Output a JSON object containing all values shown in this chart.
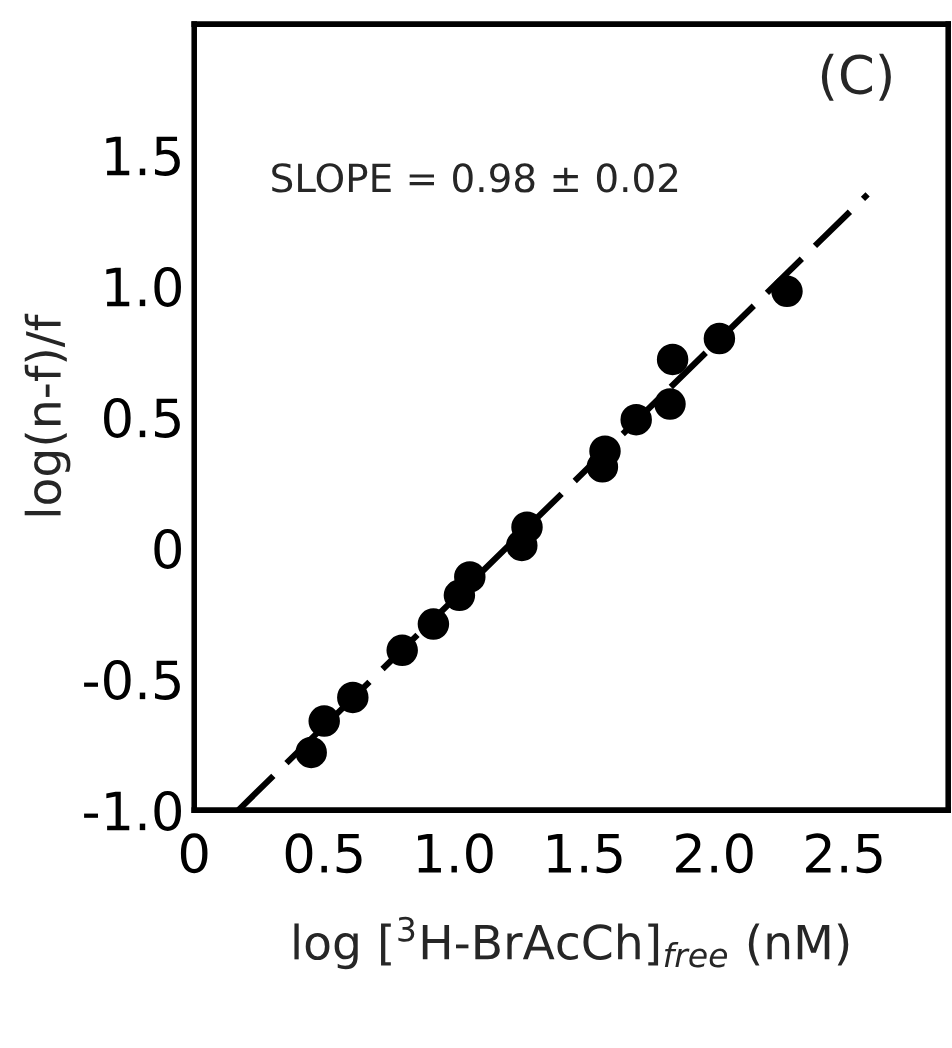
{
  "chart_data": {
    "type": "scatter",
    "xlabel": "log [$^{3}$H-BrAcCh]$_{free}$ (nM)",
    "ylabel": "log(n-f)/f",
    "annotations": [
      "(C)",
      "SLOPE = 0.98 ± 0.02"
    ],
    "x": [
      0.45,
      0.5,
      0.61,
      0.8,
      0.92,
      1.02,
      1.06,
      1.26,
      1.28,
      1.57,
      1.58,
      1.7,
      1.83,
      1.84,
      2.02,
      2.28
    ],
    "series": [
      {
        "color": "#000000",
        "marker": "circle",
        "values": [
          -0.78,
          -0.66,
          -0.57,
          -0.39,
          -0.29,
          -0.18,
          -0.11,
          0.01,
          0.08,
          0.31,
          0.37,
          0.49,
          0.55,
          0.72,
          0.8,
          0.98
        ]
      },
      {
        "type": "line",
        "color": "#000000",
        "line_style": "dashed",
        "marker": "none",
        "x": [
          0.17,
          2.59
        ],
        "values": [
          -1.0,
          1.35
        ]
      }
    ],
    "xlim": [
      0,
      2.9
    ],
    "ylim": [
      -1.0,
      2.0
    ],
    "xticks": [
      0,
      0.5,
      {
        "value": 1.0,
        "label": "1.0"
      },
      1.5,
      {
        "value": 2.0,
        "label": "2.0"
      },
      2.5
    ],
    "yticks": [
      {
        "value": -1.0,
        "label": "-1.0"
      },
      -0.5,
      0,
      0.5,
      {
        "value": 1.0,
        "label": "1.0"
      },
      1.5
    ],
    "grid": false,
    "legend": false
  }
}
